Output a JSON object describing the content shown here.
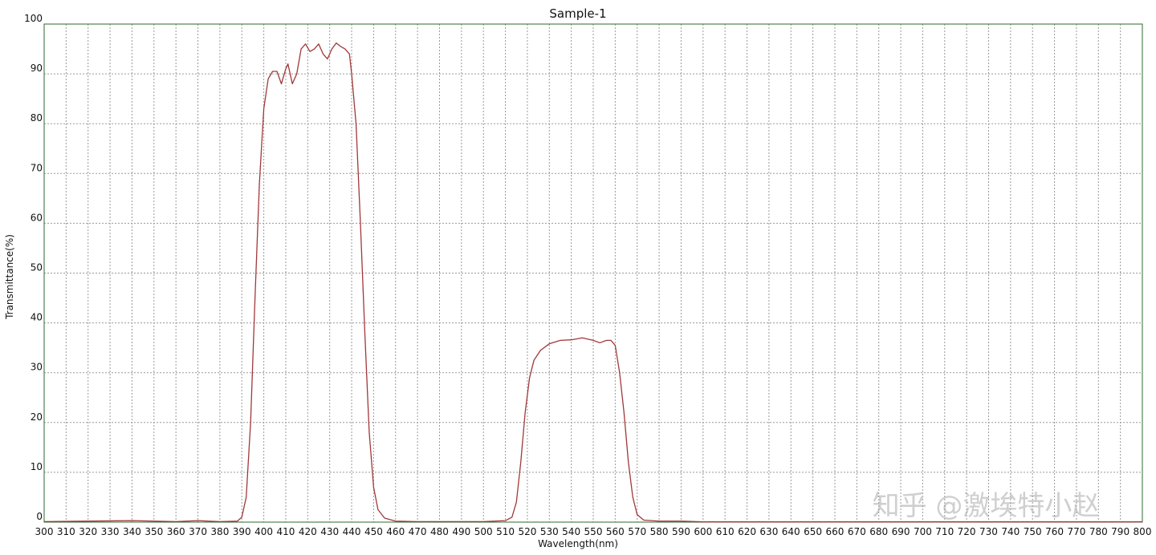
{
  "chart_data": {
    "type": "line",
    "title": "Sample-1",
    "x_label": "Wavelength(nm)",
    "y_label": "Transmittance(%)",
    "watermark": "知乎 @激埃特小赵",
    "color": "#a0383a",
    "grid": true,
    "x": [
      300,
      340,
      360,
      370,
      380,
      388,
      390,
      392,
      394,
      396,
      398,
      400,
      402,
      404,
      406,
      408,
      410,
      411,
      413,
      415,
      417,
      419,
      421,
      423,
      425,
      427,
      429,
      431,
      433,
      435,
      437,
      439,
      440,
      442,
      444,
      446,
      448,
      450,
      452,
      455,
      460,
      470,
      500,
      510,
      513,
      515,
      517,
      519,
      521,
      523,
      526,
      530,
      535,
      540,
      545,
      550,
      553,
      556,
      558,
      560,
      562,
      564,
      566,
      568,
      570,
      573,
      580,
      590,
      600,
      700,
      800
    ],
    "values": [
      0.1,
      0.3,
      0.1,
      0.3,
      0.1,
      0.2,
      1,
      5,
      20,
      45,
      68,
      83,
      89,
      90.5,
      90.5,
      88,
      91,
      92,
      88,
      90,
      95,
      96,
      94.5,
      95,
      96,
      94,
      93,
      95,
      96.2,
      95.5,
      95,
      94,
      90,
      80,
      60,
      38,
      18,
      7,
      2.5,
      0.8,
      0.2,
      0.1,
      0.1,
      0.3,
      1,
      4,
      12,
      22,
      29,
      32.5,
      34.5,
      35.8,
      36.5,
      36.6,
      37,
      36.5,
      36,
      36.5,
      36.5,
      35.5,
      30,
      22,
      12,
      5,
      1.5,
      0.4,
      0.2,
      0.2,
      0.05,
      0.05,
      0.05
    ],
    "xlim": [
      300,
      800
    ],
    "xticks": [
      300,
      310,
      320,
      330,
      340,
      350,
      360,
      370,
      380,
      390,
      400,
      410,
      420,
      430,
      440,
      450,
      460,
      470,
      480,
      490,
      500,
      510,
      520,
      530,
      540,
      550,
      560,
      570,
      580,
      590,
      600,
      610,
      620,
      630,
      640,
      650,
      660,
      670,
      680,
      690,
      700,
      710,
      720,
      730,
      740,
      750,
      760,
      770,
      780,
      790,
      800
    ],
    "ylim": [
      0,
      100
    ],
    "yticks": [
      0,
      10,
      20,
      30,
      40,
      50,
      60,
      70,
      80,
      90,
      100
    ]
  }
}
